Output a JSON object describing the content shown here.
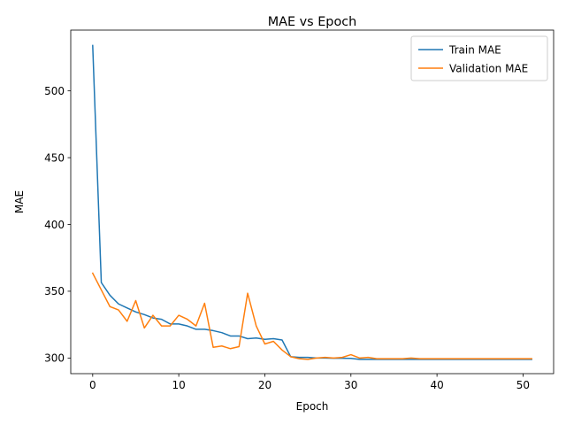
{
  "chart_data": {
    "type": "line",
    "title": "MAE vs Epoch",
    "xlabel": "Epoch",
    "ylabel": "MAE",
    "xlim": [
      -2.55,
      53.55
    ],
    "ylim": [
      288.3,
      545.5
    ],
    "xticks": [
      0,
      10,
      20,
      30,
      40,
      50
    ],
    "yticks": [
      300,
      350,
      400,
      450,
      500
    ],
    "grid": false,
    "legend_position": "top-right",
    "x": [
      0,
      1,
      2,
      3,
      4,
      5,
      6,
      7,
      8,
      9,
      10,
      11,
      12,
      13,
      14,
      15,
      16,
      17,
      18,
      19,
      20,
      21,
      22,
      23,
      24,
      25,
      26,
      27,
      28,
      29,
      30,
      31,
      32,
      33,
      34,
      35,
      36,
      37,
      38,
      39,
      40,
      41,
      42,
      43,
      44,
      45,
      46,
      47,
      48,
      49,
      50,
      51
    ],
    "series": [
      {
        "name": "Train MAE",
        "color": "#1f77b4",
        "values": [
          534.0,
          356.5,
          347.0,
          340.5,
          337.5,
          334.5,
          332.5,
          330.0,
          329.0,
          325.5,
          325.5,
          324.0,
          321.5,
          321.5,
          320.5,
          319.0,
          316.5,
          316.5,
          314.5,
          315.0,
          314.0,
          314.5,
          313.5,
          301.0,
          300.5,
          300.5,
          300.0,
          300.0,
          299.8,
          299.8,
          299.7,
          299.0,
          299.0,
          299.0,
          299.0,
          299.0,
          299.0,
          299.0,
          299.0,
          299.0,
          299.0,
          299.0,
          299.0,
          299.0,
          299.0,
          299.0,
          299.0,
          299.0,
          299.0,
          299.0,
          299.0,
          299.0
        ]
      },
      {
        "name": "Validation MAE",
        "color": "#ff7f0e",
        "values": [
          363.5,
          351.0,
          338.5,
          336.0,
          327.5,
          343.0,
          322.5,
          332.0,
          324.0,
          324.0,
          332.0,
          329.0,
          324.0,
          341.0,
          308.0,
          309.0,
          307.0,
          308.5,
          348.5,
          324.0,
          310.5,
          312.5,
          306.0,
          301.0,
          299.5,
          299.0,
          300.0,
          300.5,
          300.0,
          300.5,
          302.5,
          300.0,
          300.5,
          299.5,
          299.5,
          299.5,
          299.5,
          300.0,
          299.5,
          299.5,
          299.5,
          299.5,
          299.5,
          299.5,
          299.5,
          299.5,
          299.5,
          299.5,
          299.5,
          299.5,
          299.5,
          299.5
        ]
      }
    ]
  }
}
